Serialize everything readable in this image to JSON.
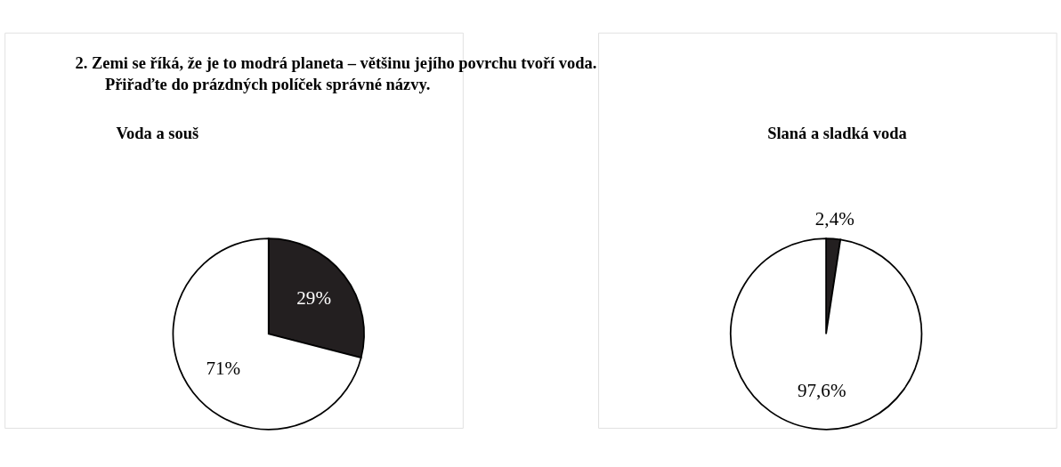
{
  "chart_data": [
    {
      "type": "pie",
      "title": "Voda a souš",
      "annotations": [
        "2. Zemi se říká, že je to modrá planeta – většinu jejího povrchu tvoří voda.",
        "Přiřaďte do prázdných políček správné názvy."
      ],
      "categories": [
        null,
        null
      ],
      "values": [
        29,
        71
      ],
      "colors": [
        "#231f20",
        "#ffffff"
      ],
      "value_labels": [
        "29%",
        "71%"
      ]
    },
    {
      "type": "pie",
      "title": "Slaná a sladká voda",
      "categories": [
        null,
        null
      ],
      "values": [
        2.4,
        97.6
      ],
      "colors": [
        "#231f20",
        "#ffffff"
      ],
      "value_labels": [
        "2,4%",
        "97,6%"
      ]
    }
  ]
}
